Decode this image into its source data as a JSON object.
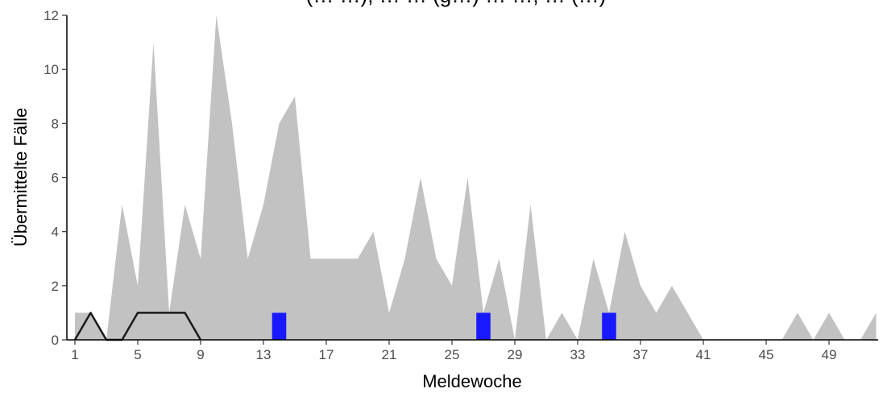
{
  "chart_data": {
    "type": "area",
    "title": "(… …), … … (g…) … …, … (…)",
    "xlabel": "Meldewoche",
    "ylabel": "Übermittelte Fälle",
    "xlim": [
      1,
      52
    ],
    "ylim": [
      0,
      12
    ],
    "x_ticks": [
      "1",
      "5",
      "9",
      "13",
      "17",
      "21",
      "25",
      "29",
      "33",
      "37",
      "41",
      "45",
      "49"
    ],
    "y_ticks": [
      "0",
      "2",
      "4",
      "6",
      "8",
      "10",
      "12"
    ],
    "grid": false,
    "series": [
      {
        "kind": "area",
        "color": "#c2c2c2",
        "x": [
          1,
          2,
          3,
          4,
          5,
          6,
          7,
          8,
          9,
          10,
          11,
          12,
          13,
          14,
          15,
          16,
          17,
          18,
          19,
          20,
          21,
          22,
          23,
          24,
          25,
          26,
          27,
          28,
          29,
          30,
          31,
          32,
          33,
          34,
          35,
          36,
          37,
          38,
          39,
          40,
          41,
          42,
          43,
          44,
          45,
          46,
          47,
          48,
          49,
          50,
          51,
          52
        ],
        "values": [
          1,
          1,
          0,
          5,
          2,
          11,
          1,
          5,
          3,
          12,
          8,
          3,
          5,
          8,
          9,
          3,
          3,
          3,
          3,
          4,
          1,
          3,
          6,
          3,
          2,
          6,
          1,
          3,
          0,
          5,
          0,
          1,
          0,
          3,
          1,
          4,
          2,
          1,
          2,
          1,
          0,
          0,
          0,
          0,
          0,
          0,
          1,
          0,
          1,
          0,
          0,
          1
        ]
      },
      {
        "kind": "line",
        "color": "#1a1a1a",
        "x": [
          1,
          2,
          3,
          4,
          5,
          6,
          7,
          8,
          9
        ],
        "values": [
          0,
          1,
          0,
          0,
          1,
          1,
          1,
          1,
          0
        ]
      },
      {
        "kind": "bar",
        "color": "#1919ff",
        "x": [
          14,
          27,
          35
        ],
        "values": [
          1,
          1,
          1
        ]
      }
    ]
  }
}
